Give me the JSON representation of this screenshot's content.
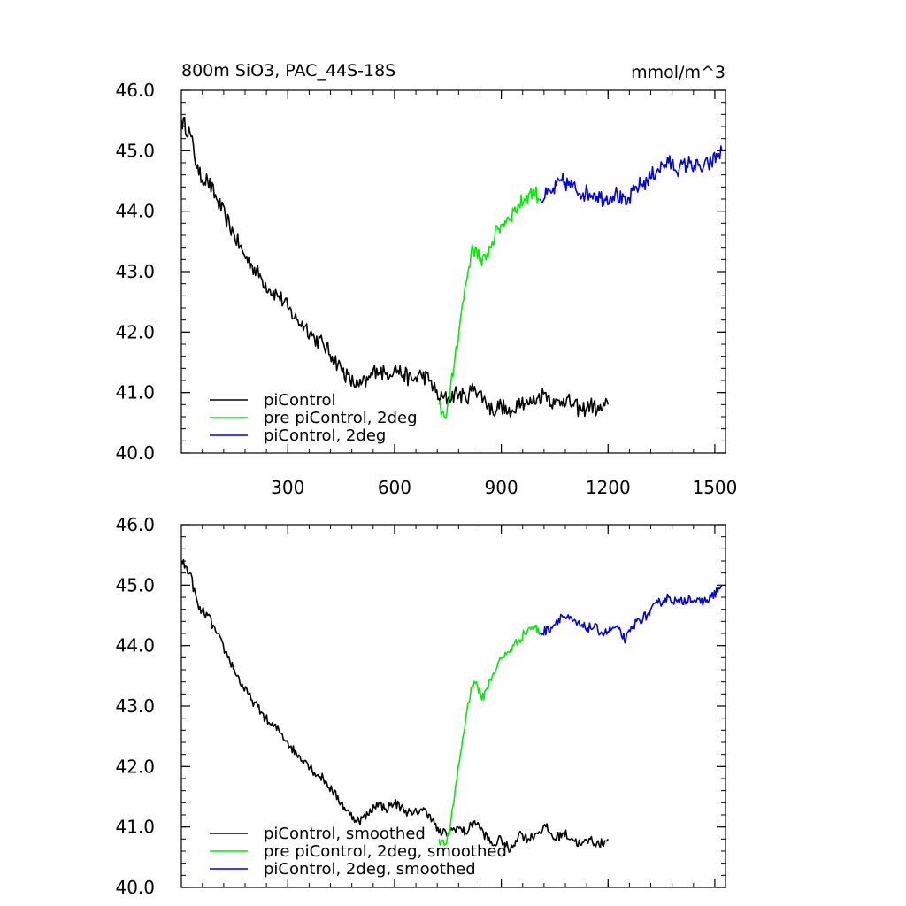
{
  "figure": {
    "title_left": "800m SiO3, PAC_44S-18S",
    "title_right": "mmol/m^3"
  },
  "colors": {
    "black": "#000000",
    "green": "#00ee00",
    "blue": "#0000ee"
  },
  "chart_data": [
    {
      "type": "line",
      "title": "800m SiO3, PAC_44S-18S",
      "units": "mmol/m^3",
      "xlim": [
        1,
        1530
      ],
      "ylim": [
        40,
        46
      ],
      "xticks": [
        300,
        600,
        900,
        1200,
        1500
      ],
      "xtick_labels": [
        "300",
        "600",
        "900",
        "1200",
        "1500"
      ],
      "yticks": [
        40,
        41,
        42,
        43,
        44,
        45,
        46
      ],
      "ytick_labels": [
        "40.0",
        "41.0",
        "42.0",
        "43.0",
        "44.0",
        "45.0",
        "46.0"
      ],
      "legend_position": "bottom-left",
      "series": [
        {
          "name": "piControl",
          "color": "#000000",
          "x": [
            1,
            25,
            50,
            75,
            100,
            125,
            150,
            175,
            200,
            225,
            250,
            275,
            300,
            325,
            350,
            375,
            400,
            425,
            450,
            475,
            500,
            525,
            550,
            575,
            600,
            625,
            650,
            675,
            700,
            725,
            750,
            775,
            800,
            825,
            850,
            875,
            900,
            925,
            950,
            975,
            1000,
            1025,
            1050,
            1075,
            1100,
            1125,
            1150,
            1175,
            1200
          ],
          "y": [
            45.5,
            45.3,
            44.6,
            44.5,
            44.2,
            43.9,
            43.6,
            43.3,
            43.1,
            42.9,
            42.7,
            42.6,
            42.4,
            42.2,
            42.1,
            41.9,
            41.8,
            41.6,
            41.4,
            41.2,
            41.1,
            41.2,
            41.4,
            41.3,
            41.4,
            41.3,
            41.2,
            41.3,
            41.2,
            40.9,
            40.9,
            41.0,
            40.9,
            41.1,
            40.9,
            40.7,
            40.8,
            40.6,
            40.9,
            40.8,
            40.9,
            41.0,
            40.8,
            40.9,
            40.8,
            40.7,
            40.8,
            40.7,
            40.8
          ]
        },
        {
          "name": "pre piControl, 2deg",
          "color": "#00ee00",
          "x": [
            725,
            740,
            755,
            770,
            785,
            800,
            815,
            830,
            845,
            860,
            875,
            890,
            905,
            920,
            935,
            950,
            965,
            980,
            995,
            1010
          ],
          "y": [
            40.8,
            40.6,
            40.9,
            41.6,
            42.2,
            42.8,
            43.3,
            43.4,
            43.1,
            43.3,
            43.5,
            43.7,
            43.8,
            43.9,
            44.0,
            44.1,
            44.2,
            44.3,
            44.3,
            44.2
          ]
        },
        {
          "name": "piControl, 2deg",
          "color": "#0000ee",
          "x": [
            1010,
            1040,
            1070,
            1100,
            1130,
            1160,
            1190,
            1220,
            1250,
            1280,
            1310,
            1340,
            1370,
            1400,
            1430,
            1460,
            1490,
            1520
          ],
          "y": [
            44.2,
            44.3,
            44.5,
            44.4,
            44.3,
            44.3,
            44.2,
            44.3,
            44.1,
            44.4,
            44.5,
            44.7,
            44.8,
            44.7,
            44.8,
            44.7,
            44.8,
            45.0
          ]
        }
      ]
    },
    {
      "type": "line",
      "xlim": [
        1,
        1530
      ],
      "ylim": [
        40,
        46
      ],
      "yticks": [
        40,
        41,
        42,
        43,
        44,
        45,
        46
      ],
      "ytick_labels": [
        "40.0",
        "41.0",
        "42.0",
        "43.0",
        "44.0",
        "45.0",
        "46.0"
      ],
      "legend_position": "bottom-left",
      "series": [
        {
          "name": "piControl, smoothed",
          "color": "#000000",
          "x": [
            1,
            25,
            50,
            75,
            100,
            125,
            150,
            175,
            200,
            225,
            250,
            275,
            300,
            325,
            350,
            375,
            400,
            425,
            450,
            475,
            500,
            525,
            550,
            575,
            600,
            625,
            650,
            675,
            700,
            725,
            750,
            775,
            800,
            825,
            850,
            875,
            900,
            925,
            950,
            975,
            1000,
            1025,
            1050,
            1075,
            1100,
            1125,
            1150,
            1175,
            1200
          ],
          "y": [
            45.4,
            45.2,
            44.6,
            44.5,
            44.2,
            43.9,
            43.6,
            43.3,
            43.1,
            42.9,
            42.7,
            42.6,
            42.4,
            42.2,
            42.1,
            41.9,
            41.8,
            41.6,
            41.4,
            41.2,
            41.1,
            41.2,
            41.4,
            41.3,
            41.4,
            41.3,
            41.2,
            41.3,
            41.2,
            40.9,
            40.9,
            41.0,
            40.9,
            41.1,
            40.9,
            40.7,
            40.8,
            40.6,
            40.9,
            40.8,
            40.9,
            41.0,
            40.8,
            40.9,
            40.8,
            40.7,
            40.8,
            40.7,
            40.8
          ]
        },
        {
          "name": "pre piControl, 2deg, smoothed",
          "color": "#00ee00",
          "x": [
            725,
            740,
            755,
            770,
            785,
            800,
            815,
            830,
            845,
            860,
            875,
            890,
            905,
            920,
            935,
            950,
            965,
            980,
            995,
            1010
          ],
          "y": [
            40.8,
            40.7,
            40.9,
            41.6,
            42.2,
            42.8,
            43.3,
            43.4,
            43.1,
            43.3,
            43.5,
            43.7,
            43.8,
            43.9,
            44.0,
            44.1,
            44.2,
            44.3,
            44.3,
            44.2
          ]
        },
        {
          "name": "piControl, 2deg, smoothed",
          "color": "#0000ee",
          "x": [
            1010,
            1040,
            1070,
            1100,
            1130,
            1160,
            1190,
            1220,
            1250,
            1280,
            1310,
            1340,
            1370,
            1400,
            1430,
            1460,
            1490,
            1520
          ],
          "y": [
            44.2,
            44.3,
            44.5,
            44.4,
            44.3,
            44.3,
            44.2,
            44.3,
            44.1,
            44.4,
            44.5,
            44.7,
            44.8,
            44.7,
            44.8,
            44.7,
            44.8,
            45.0
          ]
        }
      ]
    }
  ]
}
